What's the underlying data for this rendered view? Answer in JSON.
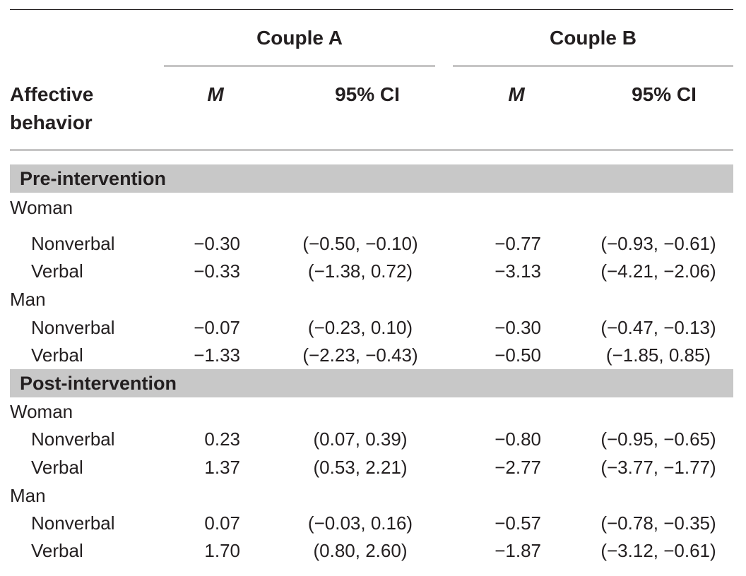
{
  "header": {
    "couple_a": "Couple A",
    "couple_b": "Couple B",
    "row_header_line1": "Affective",
    "row_header_line2": "behavior",
    "col_m": "M",
    "col_ci": "95% CI"
  },
  "sections": [
    {
      "label": "Pre-intervention",
      "groups": [
        {
          "label": "Woman",
          "rows": [
            {
              "label": "Nonverbal",
              "a_m": "−0.30",
              "a_ci": "(−0.50, −0.10)",
              "b_m": "−0.77",
              "b_ci": "(−0.93, −0.61)"
            },
            {
              "label": "Verbal",
              "a_m": "−0.33",
              "a_ci": "(−1.38, 0.72)",
              "b_m": "−3.13",
              "b_ci": "(−4.21, −2.06)"
            }
          ]
        },
        {
          "label": "Man",
          "rows": [
            {
              "label": "Nonverbal",
              "a_m": "−0.07",
              "a_ci": "(−0.23, 0.10)",
              "b_m": "−0.30",
              "b_ci": "(−0.47, −0.13)"
            },
            {
              "label": "Verbal",
              "a_m": "−1.33",
              "a_ci": "(−2.23, −0.43)",
              "b_m": "−0.50",
              "b_ci": "(−1.85, 0.85)"
            }
          ]
        }
      ]
    },
    {
      "label": "Post-intervention",
      "groups": [
        {
          "label": "Woman",
          "rows": [
            {
              "label": "Nonverbal",
              "a_m": "0.23",
              "a_ci": "(0.07, 0.39)",
              "b_m": "−0.80",
              "b_ci": "(−0.95, −0.65)"
            },
            {
              "label": "Verbal",
              "a_m": "1.37",
              "a_ci": "(0.53, 2.21)",
              "b_m": "−2.77",
              "b_ci": "(−3.77, −1.77)"
            }
          ]
        },
        {
          "label": "Man",
          "rows": [
            {
              "label": "Nonverbal",
              "a_m": "0.07",
              "a_ci": "(−0.03, 0.16)",
              "b_m": "−0.57",
              "b_ci": "(−0.78, −0.35)"
            },
            {
              "label": "Verbal",
              "a_m": "1.70",
              "a_ci": "(0.80, 2.60)",
              "b_m": "−1.87",
              "b_ci": "(−3.12, −0.61)"
            }
          ]
        }
      ]
    }
  ]
}
